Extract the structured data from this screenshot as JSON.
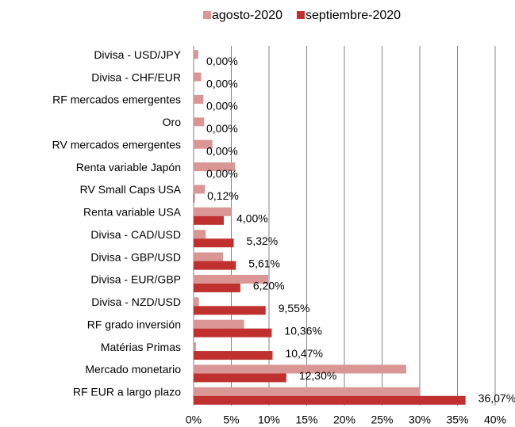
{
  "chart_data": {
    "type": "hbar",
    "categories": [
      "Divisa - USD/JPY",
      "Divisa - CHF/EUR",
      "RF mercados emergentes",
      "Oro",
      "RV mercados emergentes",
      "Renta variable Japón",
      "RV Small Caps USA",
      "Renta variable USA",
      "Divisa - CAD/USD",
      "Divisa - GBP/USD",
      "Divisa - EUR/GBP",
      "Divisa - NZD/USD",
      "RF grado inversión",
      "Matérias Primas",
      "Mercado monetario",
      "RF EUR a largo plazo"
    ],
    "series": [
      {
        "name": "agosto-2020",
        "color": "#d99694",
        "values": [
          0.6,
          1.0,
          1.3,
          1.4,
          2.5,
          5.5,
          1.5,
          5.0,
          1.6,
          3.9,
          9.9,
          0.7,
          6.7,
          0.3,
          28.2,
          30.0
        ]
      },
      {
        "name": "septiembre-2020",
        "color": "#c0302f",
        "values": [
          0,
          0,
          0,
          0,
          0,
          0,
          0.12,
          4.0,
          5.32,
          5.61,
          6.2,
          9.55,
          10.36,
          10.47,
          12.3,
          36.07
        ],
        "value_labels": [
          "0,00%",
          "0,00%",
          "0,00%",
          "0,00%",
          "0,00%",
          "0,00%",
          "0,12%",
          "4,00%",
          "5,32%",
          "5,61%",
          "6,20%",
          "9,55%",
          "10,36%",
          "10,47%",
          "12,30%",
          "36,07%"
        ]
      }
    ],
    "xlim": [
      0,
      40
    ],
    "xticks": [
      {
        "value": 0,
        "label": "0%"
      },
      {
        "value": 5,
        "label": "5%"
      },
      {
        "value": 10,
        "label": "10%"
      },
      {
        "value": 15,
        "label": "15%"
      },
      {
        "value": 20,
        "label": "20%"
      },
      {
        "value": 25,
        "label": "25%"
      },
      {
        "value": 30,
        "label": "30%"
      },
      {
        "value": 35,
        "label": "35%"
      },
      {
        "value": 40,
        "label": "40%"
      }
    ],
    "grid": true,
    "legend": "top"
  }
}
